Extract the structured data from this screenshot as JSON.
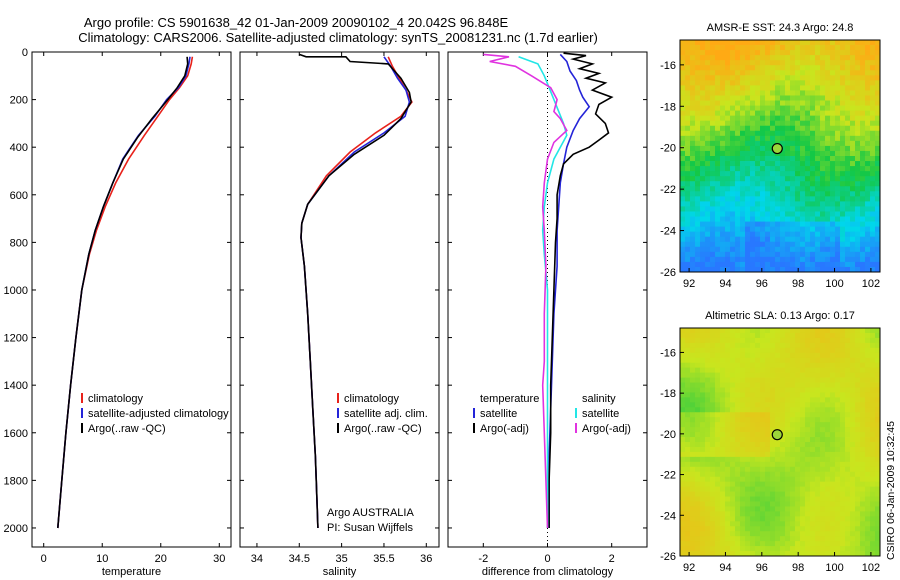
{
  "title": {
    "line1": "Argo profile: CS 5901638_42 01-Jan-2009 20090102_4 20.042S 96.848E",
    "line2": "Climatology: CARS2006. Satellite-adjusted climatology: synTS_20081231.nc (1.7d earlier)"
  },
  "colors": {
    "clim": "#e8221b",
    "sat": "#2424d8",
    "argo": "#000000",
    "cyan": "#22e6e6",
    "magenta": "#e033e0"
  },
  "depth_axis": {
    "ticks": [
      "0",
      "200",
      "400",
      "600",
      "800",
      "1000",
      "1200",
      "1400",
      "1600",
      "1800",
      "2000"
    ],
    "ylim": [
      0,
      2080
    ],
    "reversed": true
  },
  "chart_data": [
    {
      "type": "line",
      "xlabel": "temperature",
      "xticks": [
        "0",
        "10",
        "20",
        "30"
      ],
      "xlim": [
        -2,
        32
      ],
      "legend": [
        "climatology",
        "satellite-adjusted climatology",
        "Argo(..raw -QC)"
      ],
      "series": [
        {
          "name": "climatology",
          "color": "clim",
          "points": [
            [
              25.4,
              20
            ],
            [
              25.2,
              50
            ],
            [
              24.6,
              100
            ],
            [
              23.2,
              150
            ],
            [
              21.5,
              200
            ],
            [
              19.5,
              270
            ],
            [
              17.2,
              350
            ],
            [
              14.5,
              450
            ],
            [
              12.3,
              550
            ],
            [
              10.5,
              650
            ],
            [
              9.0,
              750
            ],
            [
              7.8,
              850
            ],
            [
              6.5,
              1000
            ],
            [
              5.5,
              1200
            ],
            [
              4.6,
              1400
            ],
            [
              3.8,
              1600
            ],
            [
              3.1,
              1800
            ],
            [
              2.4,
              2000
            ]
          ]
        },
        {
          "name": "satellite-adjusted climatology",
          "color": "sat",
          "points": [
            [
              25.0,
              20
            ],
            [
              24.8,
              50
            ],
            [
              24.3,
              100
            ],
            [
              23.0,
              150
            ],
            [
              21.0,
              200
            ],
            [
              19.0,
              270
            ],
            [
              16.2,
              350
            ],
            [
              13.5,
              450
            ],
            [
              11.8,
              550
            ],
            [
              10.2,
              650
            ],
            [
              8.8,
              750
            ],
            [
              7.7,
              850
            ],
            [
              6.5,
              1000
            ],
            [
              5.5,
              1200
            ],
            [
              4.6,
              1400
            ],
            [
              3.8,
              1600
            ],
            [
              3.1,
              1800
            ],
            [
              2.4,
              2000
            ]
          ]
        },
        {
          "name": "Argo(..raw -QC)",
          "color": "argo",
          "points": [
            [
              24.5,
              20
            ],
            [
              24.6,
              50
            ],
            [
              24.1,
              100
            ],
            [
              22.8,
              150
            ],
            [
              21.2,
              200
            ],
            [
              18.5,
              280
            ],
            [
              16.0,
              360
            ],
            [
              13.6,
              450
            ],
            [
              11.8,
              550
            ],
            [
              10.2,
              650
            ],
            [
              8.8,
              750
            ],
            [
              7.7,
              850
            ],
            [
              6.5,
              1000
            ],
            [
              5.5,
              1200
            ],
            [
              4.6,
              1400
            ],
            [
              3.8,
              1600
            ],
            [
              3.1,
              1800
            ],
            [
              2.4,
              2000
            ]
          ]
        }
      ]
    },
    {
      "type": "line",
      "xlabel": "salinity",
      "xticks": [
        "34",
        "34.5",
        "35",
        "35.5",
        "36"
      ],
      "xlim": [
        33.8,
        36.15
      ],
      "legend": [
        "climatology",
        "satellite adj. clim.",
        "Argo(..raw -QC)"
      ],
      "annotation": [
        "Argo AUSTRALIA",
        "PI: Susan Wijffels"
      ],
      "series": [
        {
          "name": "climatology",
          "color": "clim",
          "points": [
            [
              35.55,
              20
            ],
            [
              35.6,
              60
            ],
            [
              35.68,
              110
            ],
            [
              35.76,
              160
            ],
            [
              35.83,
              210
            ],
            [
              35.7,
              270
            ],
            [
              35.4,
              340
            ],
            [
              35.1,
              420
            ],
            [
              34.82,
              520
            ],
            [
              34.6,
              640
            ],
            [
              34.53,
              720
            ],
            [
              34.52,
              780
            ],
            [
              34.56,
              900
            ],
            [
              34.6,
              1100
            ],
            [
              34.63,
              1300
            ],
            [
              34.66,
              1500
            ],
            [
              34.69,
              1700
            ],
            [
              34.71,
              1900
            ],
            [
              34.72,
              2000
            ]
          ]
        },
        {
          "name": "satellite adj. clim.",
          "color": "sat",
          "points": [
            [
              35.5,
              20
            ],
            [
              35.58,
              60
            ],
            [
              35.66,
              110
            ],
            [
              35.76,
              160
            ],
            [
              35.8,
              210
            ],
            [
              35.75,
              270
            ],
            [
              35.5,
              340
            ],
            [
              35.15,
              420
            ],
            [
              34.85,
              520
            ],
            [
              34.6,
              640
            ],
            [
              34.53,
              720
            ],
            [
              34.52,
              780
            ],
            [
              34.56,
              900
            ],
            [
              34.6,
              1100
            ],
            [
              34.63,
              1300
            ],
            [
              34.66,
              1500
            ],
            [
              34.69,
              1700
            ],
            [
              34.71,
              1900
            ],
            [
              34.72,
              2000
            ]
          ]
        },
        {
          "name": "Argo(..raw -QC)",
          "color": "argo",
          "points": [
            [
              34.5,
              10
            ],
            [
              34.58,
              20
            ],
            [
              35.05,
              20
            ],
            [
              35.1,
              40
            ],
            [
              35.55,
              50
            ],
            [
              35.7,
              110
            ],
            [
              35.8,
              170
            ],
            [
              35.82,
              210
            ],
            [
              35.7,
              280
            ],
            [
              35.5,
              350
            ],
            [
              35.15,
              430
            ],
            [
              34.85,
              520
            ],
            [
              34.6,
              640
            ],
            [
              34.53,
              720
            ],
            [
              34.52,
              780
            ],
            [
              34.56,
              900
            ],
            [
              34.6,
              1100
            ],
            [
              34.63,
              1300
            ],
            [
              34.66,
              1500
            ],
            [
              34.69,
              1700
            ],
            [
              34.71,
              1900
            ],
            [
              34.72,
              2000
            ]
          ]
        }
      ]
    },
    {
      "type": "line",
      "xlabel": "difference from climatology",
      "xticks": [
        "-2",
        "0",
        "2"
      ],
      "xlim": [
        -3.1,
        3.1
      ],
      "legend_left_title": "temperature",
      "legend_right_title": "salinity",
      "legend_left": [
        "satellite",
        "Argo(-adj)"
      ],
      "legend_right": [
        "satellite",
        "Argo(-adj)"
      ],
      "series": [
        {
          "name": "temperature satellite",
          "color": "sat",
          "points": [
            [
              0.4,
              10
            ],
            [
              0.6,
              40
            ],
            [
              0.7,
              80
            ],
            [
              0.9,
              120
            ],
            [
              1.0,
              160
            ],
            [
              1.1,
              190
            ],
            [
              1.3,
              230
            ],
            [
              1.0,
              280
            ],
            [
              0.8,
              330
            ],
            [
              0.6,
              400
            ],
            [
              0.5,
              470
            ],
            [
              0.4,
              550
            ],
            [
              0.35,
              650
            ],
            [
              0.3,
              750
            ],
            [
              0.3,
              900
            ],
            [
              0.2,
              1100
            ],
            [
              0.15,
              1300
            ],
            [
              0.1,
              1500
            ],
            [
              0.05,
              1700
            ],
            [
              0.05,
              1900
            ],
            [
              0.05,
              2000
            ]
          ]
        },
        {
          "name": "temperature Argo(-adj)",
          "color": "argo",
          "points": [
            [
              0.5,
              5
            ],
            [
              1.2,
              15
            ],
            [
              0.8,
              30
            ],
            [
              1.4,
              50
            ],
            [
              1.0,
              70
            ],
            [
              1.6,
              90
            ],
            [
              1.2,
              110
            ],
            [
              1.8,
              130
            ],
            [
              1.4,
              160
            ],
            [
              2.0,
              190
            ],
            [
              1.6,
              220
            ],
            [
              1.5,
              260
            ],
            [
              1.8,
              300
            ],
            [
              1.9,
              340
            ],
            [
              1.6,
              370
            ],
            [
              1.3,
              400
            ],
            [
              0.8,
              430
            ],
            [
              0.5,
              470
            ],
            [
              0.4,
              520
            ],
            [
              0.3,
              600
            ],
            [
              0.3,
              700
            ],
            [
              0.25,
              800
            ],
            [
              0.2,
              1000
            ],
            [
              0.15,
              1200
            ],
            [
              0.1,
              1400
            ],
            [
              0.1,
              1600
            ],
            [
              0.05,
              1800
            ],
            [
              0.05,
              2000
            ]
          ]
        },
        {
          "name": "salinity satellite",
          "color": "cyan",
          "points": [
            [
              -0.9,
              20
            ],
            [
              -0.3,
              50
            ],
            [
              -0.1,
              100
            ],
            [
              0.2,
              200
            ],
            [
              0.5,
              300
            ],
            [
              0.6,
              350
            ],
            [
              0.4,
              400
            ],
            [
              0.2,
              450
            ],
            [
              0.0,
              550
            ],
            [
              -0.1,
              650
            ],
            [
              -0.15,
              750
            ],
            [
              -0.1,
              850
            ],
            [
              0.0,
              1000
            ],
            [
              0.0,
              1500
            ],
            [
              0.0,
              2000
            ]
          ]
        },
        {
          "name": "salinity Argo(-adj)",
          "color": "magenta",
          "points": [
            [
              -2.0,
              10
            ],
            [
              -1.2,
              20
            ],
            [
              -1.8,
              40
            ],
            [
              -1.0,
              60
            ],
            [
              -0.5,
              100
            ],
            [
              0.1,
              150
            ],
            [
              0.3,
              200
            ],
            [
              0.2,
              250
            ],
            [
              0.4,
              280
            ],
            [
              0.6,
              330
            ],
            [
              0.2,
              380
            ],
            [
              0.0,
              450
            ],
            [
              -0.1,
              550
            ],
            [
              -0.15,
              650
            ],
            [
              -0.1,
              750
            ],
            [
              -0.05,
              900
            ],
            [
              -0.1,
              1100
            ],
            [
              -0.1,
              1300
            ],
            [
              -0.15,
              1400
            ],
            [
              -0.1,
              1600
            ],
            [
              -0.05,
              1800
            ],
            [
              0.0,
              2000
            ]
          ]
        }
      ]
    },
    {
      "type": "heatmap",
      "title": "AMSR-E SST: 24.3  Argo: 24.8",
      "xticks": [
        "92",
        "94",
        "96",
        "98",
        "100",
        "102"
      ],
      "yticks": [
        "-16",
        "-18",
        "-20",
        "-22",
        "-24",
        "-26"
      ],
      "xlim": [
        91.5,
        102.5
      ],
      "ylim": [
        -26,
        -14.8
      ],
      "marker": [
        96.85,
        -20.04
      ]
    },
    {
      "type": "heatmap",
      "title": "Altimetric SLA: 0.13  Argo: 0.17",
      "xticks": [
        "92",
        "94",
        "96",
        "98",
        "100",
        "102"
      ],
      "yticks": [
        "-16",
        "-18",
        "-20",
        "-22",
        "-24",
        "-26"
      ],
      "xlim": [
        91.5,
        102.5
      ],
      "ylim": [
        -26,
        -14.8
      ],
      "marker": [
        96.85,
        -20.04
      ]
    }
  ],
  "side_label": "CSIRO 06-Jan-2009 10:32:45"
}
